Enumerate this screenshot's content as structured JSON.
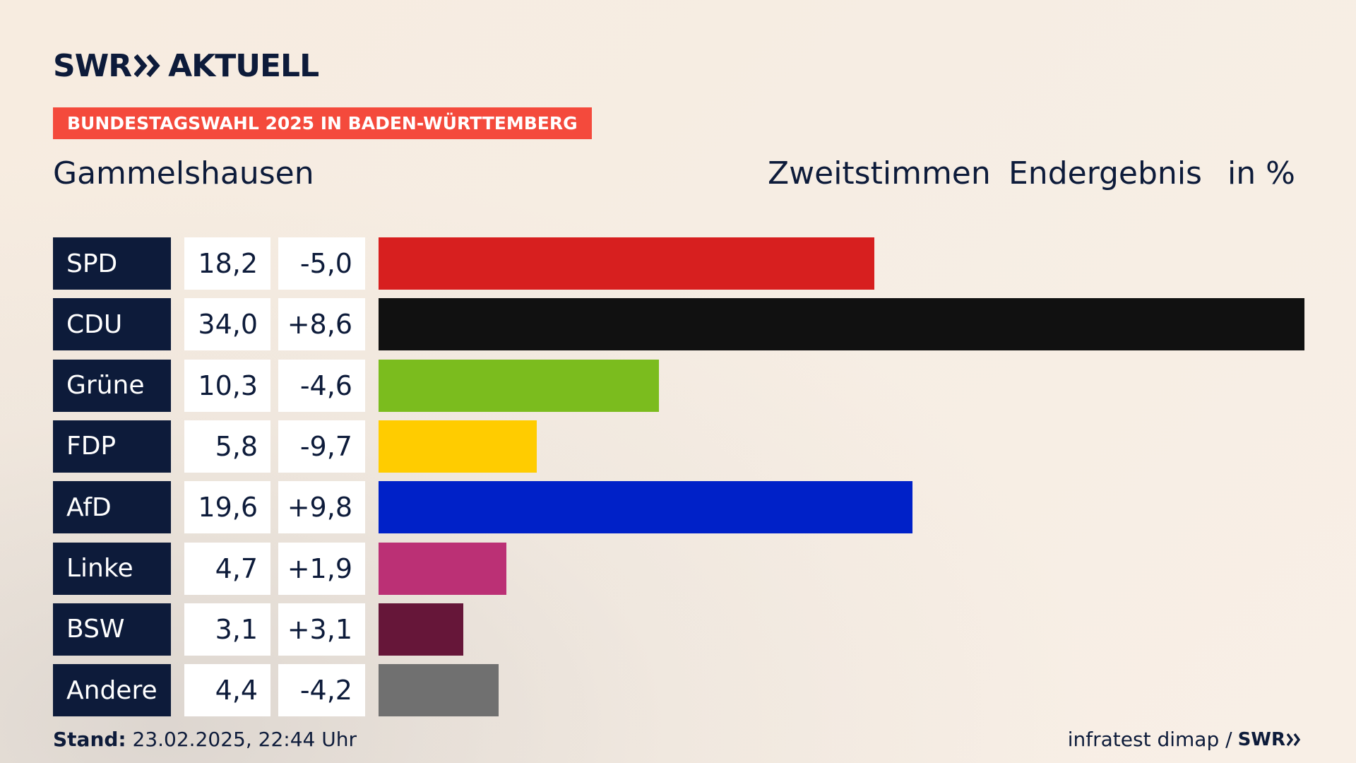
{
  "header": {
    "logo_left": "SWR",
    "logo_right": "AKTUELL",
    "banner": "BUNDESTAGSWAHL 2025 IN BADEN-WÜRTTEMBERG",
    "region": "Gammelshausen",
    "sub1": "Zweitstimmen",
    "sub2": "Endergebnis",
    "sub3": "in %"
  },
  "footer": {
    "stand_label": "Stand:",
    "stand_value": " 23.02.2025, 22:44 Uhr",
    "source": "infratest dimap / ",
    "source_logo": "SWR"
  },
  "colors": {
    "navy": "#0d1b3a",
    "banner": "#f44a3c"
  },
  "chart_data": {
    "type": "bar",
    "orientation": "horizontal",
    "title": "Gammelshausen",
    "unit": "in %",
    "xlim": [
      0,
      34.0
    ],
    "categories": [
      "SPD",
      "CDU",
      "Grüne",
      "FDP",
      "AfD",
      "Linke",
      "BSW",
      "Andere"
    ],
    "values": [
      18.2,
      34.0,
      10.3,
      5.8,
      19.6,
      4.7,
      3.1,
      4.4
    ],
    "value_labels": [
      "18,2",
      "34,0",
      "10,3",
      "5,8",
      "19,6",
      "4,7",
      "3,1",
      "4,4"
    ],
    "diffs": [
      -5.0,
      8.6,
      -4.6,
      -9.7,
      9.8,
      1.9,
      3.1,
      -4.2
    ],
    "diff_labels": [
      "-5,0",
      "+8,6",
      "-4,6",
      "-9,7",
      "+9,8",
      "+1,9",
      "+3,1",
      "-4,2"
    ],
    "colors": [
      "#d71f1f",
      "#111111",
      "#7bbc1e",
      "#ffcc00",
      "#0021c8",
      "#bb3075",
      "#661639",
      "#707070"
    ]
  }
}
